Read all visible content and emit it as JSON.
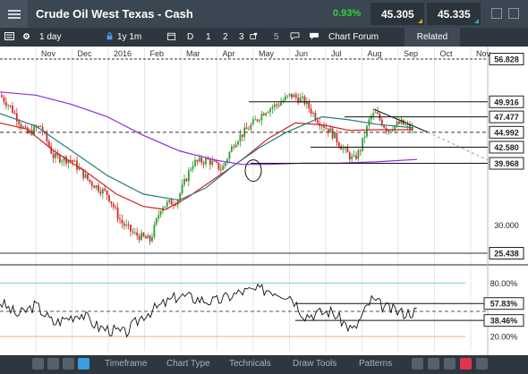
{
  "header": {
    "title": "Crude Oil West Texas - Cash",
    "change": "0.93%",
    "sell": "45.305",
    "buy": "45.335",
    "change_color": "#2fd33a"
  },
  "toolbar": {
    "interval": "1 day",
    "range": "1y 1m",
    "draw_mode": "D",
    "pages": [
      "1",
      "2",
      "3"
    ],
    "page_5": "5",
    "chart_forum": "Chart Forum",
    "related": "Related",
    "icons": [
      "calculator-icon",
      "gear-icon",
      "padlock-icon",
      "calendar-icon",
      "layout-icon",
      "speech-bubble-icon"
    ]
  },
  "chart_data": [
    {
      "type": "candlestick",
      "months": [
        "Nov",
        "Dec",
        "2016",
        "Feb",
        "Mar",
        "Apr",
        "May",
        "Jun",
        "Jul",
        "Aug",
        "Sep",
        "Oct",
        "Nov"
      ],
      "price_labels": [
        "56.828",
        "49.916",
        "47.477",
        "44.992",
        "42.580",
        "39.968",
        "30.000",
        "25.438"
      ],
      "moving_averages": [
        {
          "color": "#d22020"
        },
        {
          "color": "#2a7a7a"
        },
        {
          "color": "#8a2be2"
        }
      ],
      "approx_close": [
        [
          "Nov",
          45.0
        ],
        [
          "Dec",
          38.0
        ],
        [
          "2016",
          33.0
        ],
        [
          "Feb",
          29.0
        ],
        [
          "Mar",
          37.0
        ],
        [
          "Apr",
          41.0
        ],
        [
          "May",
          47.0
        ],
        [
          "Jun",
          49.5
        ],
        [
          "Jul",
          44.0
        ],
        [
          "Aug",
          46.5
        ],
        [
          "Sep",
          45.3
        ]
      ]
    },
    {
      "type": "line",
      "indicator": "oscillator",
      "y_labels": [
        "80.00%",
        "57.83%",
        "38.46%",
        "20.00%"
      ]
    }
  ],
  "bottom": {
    "tabs": [
      "Timeframe",
      "Chart Type",
      "Technicals",
      "Draw Tools",
      "Patterns"
    ],
    "icons": [
      "refresh-icon",
      "no-entry-icon",
      "pencil-icon",
      "settings-icon",
      "zoom-icon",
      "zoom-in-icon",
      "zoom-out-icon",
      "export-icon",
      "expand-icon"
    ]
  }
}
